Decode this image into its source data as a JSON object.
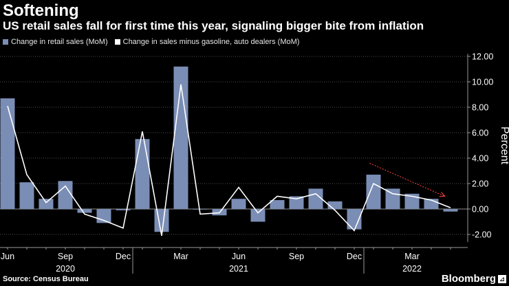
{
  "title": "Softening",
  "subtitle": "US retail sales fall for first time this year, signaling bigger bite from inflation",
  "legend": {
    "bar_label": "Change in retail sales (MoM)",
    "line_label": "Change in sales minus gasoline, auto dealers (MoM)"
  },
  "footer": {
    "source": "Source: Census Bureau",
    "brand": "Bloomberg"
  },
  "colors": {
    "bar": "#7a8db4",
    "line": "#ffffff",
    "arrow": "#e23b3b",
    "grid": "#6a6a6a"
  },
  "chart_data": {
    "type": "bar",
    "title": "Softening",
    "ylabel": "Percent",
    "ylim": [
      -2.2,
      12.2
    ],
    "yticks": [
      -2,
      0,
      2,
      4,
      6,
      8,
      10,
      12
    ],
    "ytick_labels": [
      "-2.00",
      "0.00",
      "2.00",
      "4.00",
      "6.00",
      "8.00",
      "10.00",
      "12.00"
    ],
    "categories": [
      "Jun 2020",
      "Jul 2020",
      "Aug 2020",
      "Sep 2020",
      "Oct 2020",
      "Nov 2020",
      "Dec 2020",
      "Jan 2021",
      "Feb 2021",
      "Mar 2021",
      "Apr 2021",
      "May 2021",
      "Jun 2021",
      "Jul 2021",
      "Aug 2021",
      "Sep 2021",
      "Oct 2021",
      "Nov 2021",
      "Dec 2021",
      "Jan 2022",
      "Feb 2022",
      "Mar 2022",
      "Apr 2022",
      "May 2022"
    ],
    "series": [
      {
        "name": "Change in retail sales (MoM)",
        "kind": "bar",
        "values": [
          8.7,
          2.1,
          0.8,
          2.2,
          -0.3,
          -1.1,
          -0.1,
          5.5,
          -1.8,
          11.2,
          0.0,
          -0.5,
          0.8,
          -1.0,
          0.7,
          1.0,
          1.6,
          0.6,
          -1.6,
          2.7,
          1.6,
          1.2,
          0.8,
          -0.2
        ]
      },
      {
        "name": "Change in sales minus gasoline, auto dealers (MoM)",
        "kind": "line",
        "values": [
          8.1,
          2.7,
          0.5,
          1.8,
          -0.4,
          -0.9,
          -1.5,
          6.1,
          -2.1,
          9.8,
          -0.4,
          -0.3,
          1.7,
          -0.3,
          1.0,
          0.8,
          1.2,
          -0.1,
          -1.7,
          2.0,
          1.2,
          1.0,
          0.7,
          0.1
        ]
      }
    ],
    "x_tick_labels": [
      {
        "index": 0,
        "label": "Jun"
      },
      {
        "index": 3,
        "label": "Sep"
      },
      {
        "index": 6,
        "label": "Dec"
      },
      {
        "index": 9,
        "label": "Mar"
      },
      {
        "index": 12,
        "label": "Jun"
      },
      {
        "index": 15,
        "label": "Sep"
      },
      {
        "index": 18,
        "label": "Dec"
      },
      {
        "index": 21,
        "label": "Mar"
      }
    ],
    "year_labels": [
      {
        "index": 3,
        "label": "2020"
      },
      {
        "index": 12,
        "label": "2021"
      },
      {
        "index": 21,
        "label": "2022"
      }
    ],
    "year_dividers": [
      7,
      19
    ],
    "annotation": {
      "type": "arrow",
      "from_index": 18.8,
      "from_value": 3.6,
      "to_index": 22.7,
      "to_value": 1.0,
      "style": "dotted"
    }
  }
}
